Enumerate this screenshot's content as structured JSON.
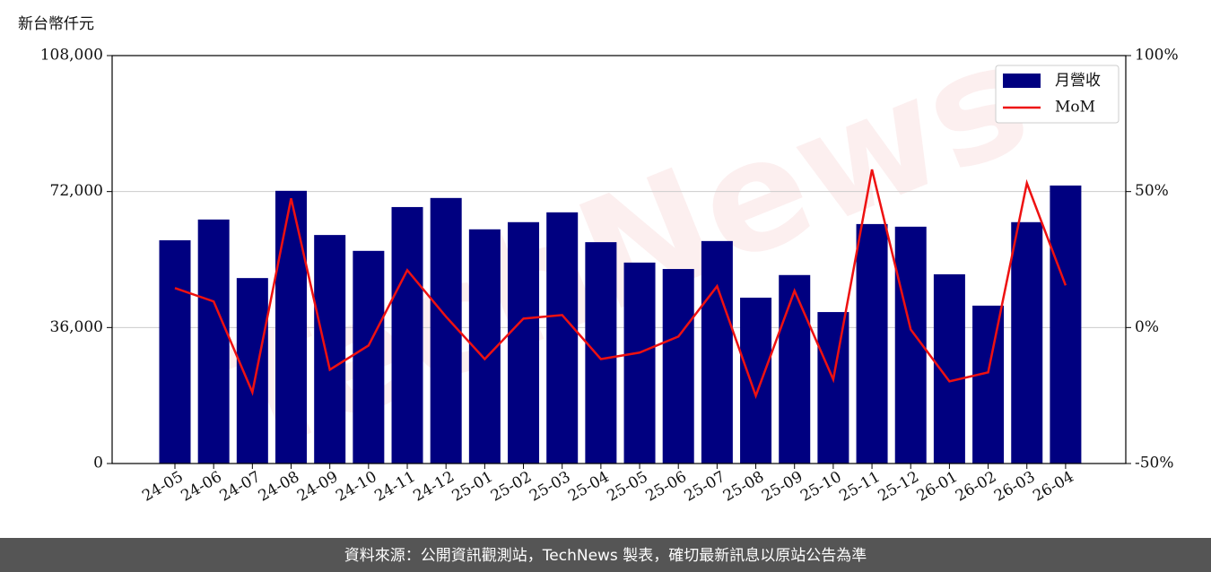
{
  "chart_data": {
    "type": "bar_line",
    "y_label": "新台幣仟元",
    "watermark": "TechNews",
    "categories": [
      "24-05",
      "24-06",
      "24-07",
      "24-08",
      "24-09",
      "24-10",
      "24-11",
      "24-12",
      "25-01",
      "25-02",
      "25-03",
      "25-04",
      "25-05",
      "25-06",
      "25-07",
      "25-08",
      "25-09",
      "25-10",
      "25-11",
      "25-12",
      "26-01",
      "26-02",
      "26-03",
      "26-04"
    ],
    "series": [
      {
        "name": "月營收",
        "color": "#000080",
        "type": "bar",
        "values": [
          59100,
          64600,
          49100,
          72200,
          60500,
          56300,
          67900,
          70300,
          62000,
          63900,
          66500,
          58600,
          53200,
          51500,
          58900,
          43900,
          49900,
          40100,
          63400,
          62700,
          50100,
          41800,
          63900,
          73600
        ]
      },
      {
        "name": "MoM",
        "color": "#ee1111",
        "type": "line",
        "axis": "y2",
        "values": [
          14.5,
          9.6,
          -23.8,
          47.5,
          -15.5,
          -6.6,
          21.1,
          4.0,
          -11.6,
          3.3,
          4.6,
          -11.6,
          -9.2,
          -3.3,
          15.2,
          -25.1,
          13.5,
          -19.1,
          58.1,
          -0.7,
          -19.8,
          -16.5,
          53.1,
          15.5
        ]
      }
    ],
    "ylim": [
      0,
      108000
    ],
    "yticks": [
      0,
      {
        "value": 36000,
        "label": "36,000"
      },
      {
        "value": 72000,
        "label": "72,000"
      },
      {
        "value": 108000,
        "label": "108,000"
      }
    ],
    "y2lim": [
      -50,
      100
    ],
    "y2ticks": [
      {
        "value": -50,
        "label": "-50%"
      },
      {
        "value": 0,
        "label": "0%"
      },
      {
        "value": 50,
        "label": "50%"
      },
      {
        "value": 100,
        "label": "100%"
      }
    ],
    "grid": true,
    "legend": "upper right"
  },
  "footer": "資料來源：公開資訊觀測站，TechNews 製表，確切最新訊息以原站公告為準"
}
